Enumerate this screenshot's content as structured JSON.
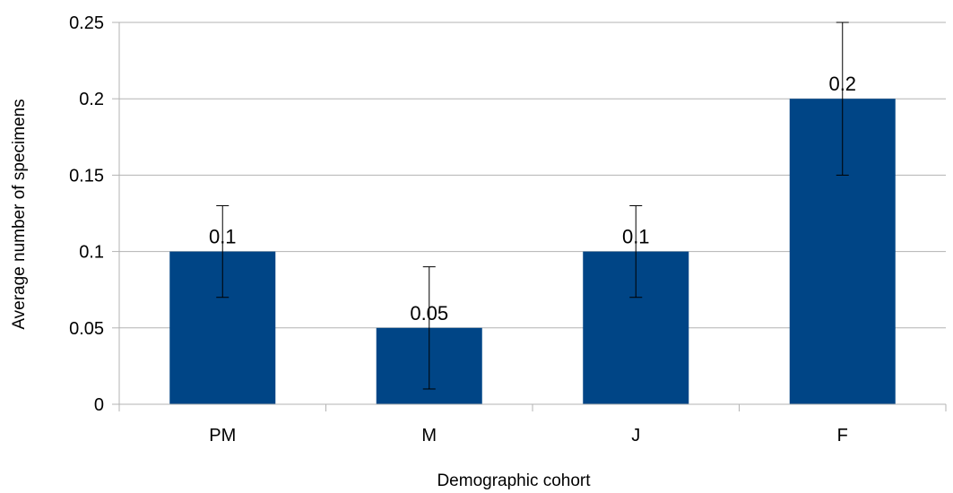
{
  "chart_data": {
    "type": "bar",
    "title": "",
    "xlabel": "Demographic cohort",
    "ylabel": "Average number of specimens",
    "categories": [
      "PM",
      "M",
      "J",
      "F"
    ],
    "values": [
      0.1,
      0.05,
      0.1,
      0.2
    ],
    "value_labels": [
      "0.1",
      "0.05",
      "0.1",
      "0.2"
    ],
    "error_low": [
      0.07,
      0.01,
      0.07,
      0.15
    ],
    "error_high": [
      0.13,
      0.09,
      0.13,
      0.25
    ],
    "ylim": [
      0,
      0.25
    ],
    "yticks": [
      0,
      0.05,
      0.1,
      0.15,
      0.2,
      0.25
    ],
    "ytick_labels": [
      "0",
      "0.05",
      "0.1",
      "0.15",
      "0.2",
      "0.25"
    ],
    "grid": true,
    "legend": "none",
    "bar_color": "#004586",
    "grid_color": "#b3b3b3",
    "axis_color": "#b3b3b3"
  }
}
